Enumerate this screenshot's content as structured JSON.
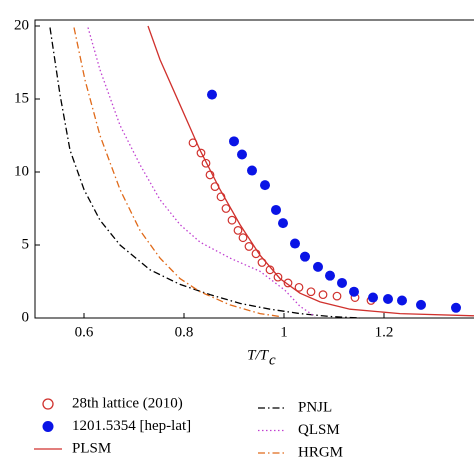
{
  "chart_data": {
    "type": "line",
    "x_label": "T/T",
    "x_label_sub": "c",
    "xlim": [
      0.502,
      1.38
    ],
    "xticks": [
      0.6,
      0.8,
      1,
      1.2
    ],
    "ylim": [
      0,
      20
    ],
    "yticks": [
      0,
      5,
      10,
      15,
      20
    ],
    "series": [
      {
        "name": "28th lattice (2010)",
        "color": "#d0312d",
        "marker": "open-circle",
        "x": [
          0.818,
          0.834,
          0.844,
          0.852,
          0.862,
          0.874,
          0.884,
          0.896,
          0.908,
          0.918,
          0.93,
          0.944,
          0.956,
          0.972,
          0.988,
          1.008,
          1.03,
          1.054,
          1.078,
          1.106,
          1.142,
          1.174
        ],
        "values": [
          12.0,
          11.3,
          10.6,
          9.8,
          9.0,
          8.3,
          7.5,
          6.7,
          6.0,
          5.5,
          4.9,
          4.4,
          3.8,
          3.3,
          2.8,
          2.4,
          2.1,
          1.8,
          1.6,
          1.5,
          1.4,
          1.2
        ]
      },
      {
        "name": "1201.5354 [hep-lat]",
        "color": "#0a14e6",
        "marker": "dot",
        "x": [
          0.856,
          0.9,
          0.916,
          0.936,
          0.962,
          0.984,
          0.998,
          1.022,
          1.042,
          1.068,
          1.092,
          1.116,
          1.14,
          1.178,
          1.208,
          1.236,
          1.274,
          1.344
        ],
        "values": [
          15.3,
          12.1,
          11.2,
          10.1,
          9.1,
          7.4,
          6.5,
          5.1,
          4.2,
          3.5,
          2.9,
          2.4,
          1.8,
          1.4,
          1.3,
          1.2,
          0.9,
          0.7
        ]
      },
      {
        "name": "PLSM",
        "color": "#d0312d",
        "dash": "solid",
        "x": [
          0.728,
          0.752,
          0.792,
          0.832,
          0.872,
          0.912,
          0.952,
          0.992,
          1.032,
          1.072,
          1.132,
          1.232,
          1.38
        ],
        "values": [
          20,
          17.7,
          14.6,
          11.5,
          8.8,
          6.4,
          4.3,
          2.7,
          1.7,
          1.1,
          0.6,
          0.3,
          0.15
        ]
      },
      {
        "name": "PNJL",
        "color": "#000000",
        "dash": "dashdot",
        "x": [
          0.532,
          0.552,
          0.572,
          0.6,
          0.632,
          0.672,
          0.732,
          0.792,
          0.852,
          0.912,
          0.972,
          1.032,
          1.092,
          1.152
        ],
        "values": [
          19.9,
          15.3,
          11.5,
          8.8,
          6.7,
          5.0,
          3.3,
          2.3,
          1.6,
          1.0,
          0.6,
          0.3,
          0.1,
          0
        ]
      },
      {
        "name": "QLSM",
        "color": "#c040d0",
        "dash": "dotted",
        "x": [
          0.608,
          0.632,
          0.672,
          0.712,
          0.752,
          0.792,
          0.832,
          0.892,
          0.952,
          1.002,
          1.032,
          1.062
        ],
        "values": [
          19.9,
          17,
          13.2,
          10.5,
          8.1,
          6.4,
          5.2,
          4.1,
          3.2,
          1.9,
          0.8,
          0.1
        ]
      },
      {
        "name": "HRGM",
        "color": "#e06a1a",
        "dash": "dashdot",
        "x": [
          0.58,
          0.602,
          0.632,
          0.672,
          0.712,
          0.752,
          0.792,
          0.832,
          0.892,
          0.952,
          0.992
        ],
        "values": [
          19.9,
          16.3,
          12.5,
          8.8,
          6.0,
          4.1,
          2.7,
          1.8,
          0.9,
          0.3,
          0.1
        ]
      }
    ]
  }
}
